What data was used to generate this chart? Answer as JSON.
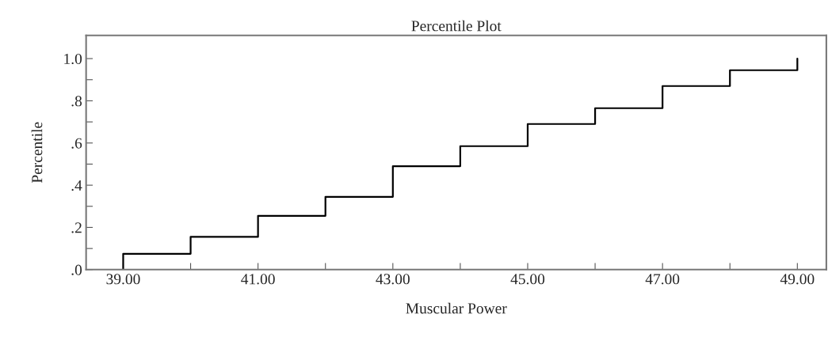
{
  "chart_data": {
    "type": "step",
    "title": "Percentile Plot",
    "xlabel": "Muscular Power",
    "ylabel": "Percentile",
    "x": [
      39,
      39,
      40,
      41,
      42,
      43,
      44,
      45,
      46,
      47,
      48,
      49
    ],
    "series": [
      {
        "color": "#000000",
        "values": [
          0,
          0.075,
          0.155,
          0.255,
          0.345,
          0.49,
          0.585,
          0.69,
          0.765,
          0.87,
          0.945,
          1.0
        ]
      }
    ],
    "xlim": [
      38.45,
      49.43
    ],
    "ylim": [
      0,
      1.11
    ],
    "xticks": [
      {
        "value": 39,
        "label": "39.00"
      },
      {
        "value": 40,
        "label": null
      },
      {
        "value": 41,
        "label": "41.00"
      },
      {
        "value": 42,
        "label": null
      },
      {
        "value": 43,
        "label": "43.00"
      },
      {
        "value": 44,
        "label": null
      },
      {
        "value": 45,
        "label": "45.00"
      },
      {
        "value": 46,
        "label": null
      },
      {
        "value": 47,
        "label": "47.00"
      },
      {
        "value": 48,
        "label": null
      },
      {
        "value": 49,
        "label": "49.00"
      }
    ],
    "yticks": [
      {
        "value": 0,
        "label": ".0"
      },
      {
        "value": 0.1,
        "label": null
      },
      {
        "value": 0.2,
        "label": ".2"
      },
      {
        "value": 0.3,
        "label": null
      },
      {
        "value": 0.4,
        "label": ".4"
      },
      {
        "value": 0.5,
        "label": null
      },
      {
        "value": 0.6,
        "label": ".6"
      },
      {
        "value": 0.7,
        "label": null
      },
      {
        "value": 0.8,
        "label": ".8"
      },
      {
        "value": 0.9,
        "label": null
      },
      {
        "value": 1.0,
        "label": "1.0"
      }
    ],
    "line_style": "solid",
    "marker": "none"
  }
}
